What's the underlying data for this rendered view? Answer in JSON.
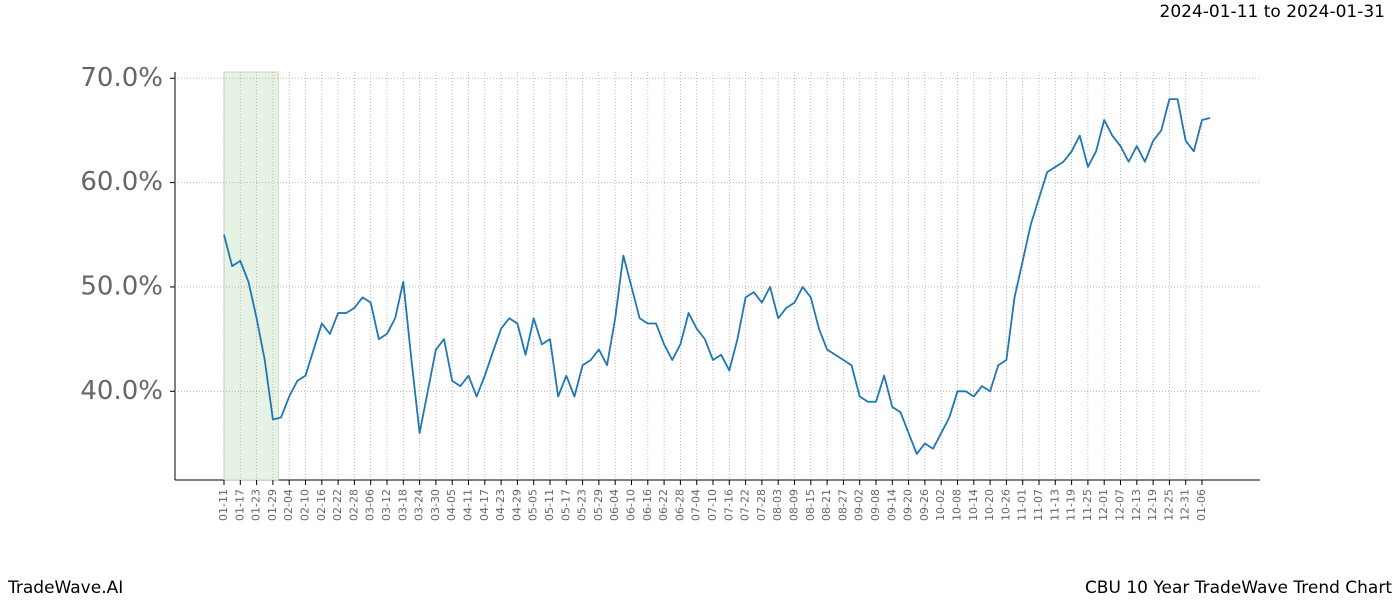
{
  "chart_data": {
    "type": "line",
    "title": "CBU 10 Year TradeWave Trend Chart",
    "subtitle": "2024-01-11 to 2024-01-31",
    "brand": "TradeWave.AI",
    "categories": [
      "01-11",
      null,
      "01-17",
      null,
      "01-23",
      null,
      "01-29",
      null,
      "02-04",
      null,
      "02-10",
      null,
      "02-16",
      null,
      "02-22",
      null,
      "02-28",
      null,
      "03-06",
      null,
      "03-12",
      null,
      "03-18",
      null,
      "03-24",
      null,
      "03-30",
      null,
      "04-05",
      null,
      "04-11",
      null,
      "04-17",
      null,
      "04-23",
      null,
      "04-29",
      null,
      "05-05",
      null,
      "05-11",
      null,
      "05-17",
      null,
      "05-23",
      null,
      "05-29",
      null,
      "06-04",
      null,
      "06-10",
      null,
      "06-16",
      null,
      "06-22",
      null,
      "06-28",
      null,
      "07-04",
      null,
      "07-10",
      null,
      "07-16",
      null,
      "07-22",
      null,
      "07-28",
      null,
      "08-03",
      null,
      "08-09",
      null,
      "08-15",
      null,
      "08-21",
      null,
      "08-27",
      null,
      "09-02",
      null,
      "09-08",
      null,
      "09-14",
      null,
      "09-20",
      null,
      "09-26",
      null,
      "10-02",
      null,
      "10-08",
      null,
      "10-14",
      null,
      "10-20",
      null,
      "10-26",
      null,
      "11-01",
      null,
      "11-07",
      null,
      "11-13",
      null,
      "11-19",
      null,
      "11-25",
      null,
      "12-01",
      null,
      "12-07",
      null,
      "12-13",
      null,
      "12-19",
      null,
      "12-25",
      null,
      "12-31",
      null,
      "01-06",
      null
    ],
    "values": [
      55,
      52,
      52.5,
      50.5,
      47,
      43,
      37.3,
      37.5,
      39.5,
      41,
      41.5,
      44,
      46.5,
      45.5,
      47.5,
      47.5,
      48,
      49,
      48.5,
      45,
      45.5,
      47,
      50.5,
      43,
      36,
      40,
      44,
      45,
      41,
      40.5,
      41.5,
      39.5,
      41.5,
      43.8,
      46,
      47,
      46.5,
      43.5,
      47,
      44.5,
      45,
      39.5,
      41.5,
      39.5,
      42.5,
      43,
      44,
      42.5,
      47,
      53,
      50,
      47,
      46.5,
      46.5,
      44.5,
      43,
      44.5,
      47.5,
      46,
      45,
      43,
      43.5,
      42,
      45,
      49,
      49.5,
      48.5,
      50,
      47,
      48,
      48.5,
      50,
      49,
      46,
      44,
      43.5,
      43,
      42.5,
      39.5,
      39,
      39,
      41.5,
      38.5,
      38,
      36,
      34,
      35,
      34.5,
      36,
      37.5,
      40,
      40,
      39.5,
      40.5,
      40,
      42.5,
      43,
      49,
      52.5,
      56,
      58.5,
      61,
      61.5,
      62,
      63,
      64.5,
      61.5,
      63,
      66,
      64.5,
      63.5,
      62,
      63.5,
      62,
      64,
      65,
      68,
      68,
      64,
      63,
      66,
      66.2
    ],
    "color": "#1f77b4",
    "ylim": [
      31.5,
      70.6
    ],
    "yticks": [
      {
        "value": 40,
        "label": "40.0%"
      },
      {
        "value": 50,
        "label": "50.0%"
      },
      {
        "value": 60,
        "label": "60.0%"
      },
      {
        "value": 70,
        "label": "70.0%"
      }
    ],
    "grid": true
  }
}
